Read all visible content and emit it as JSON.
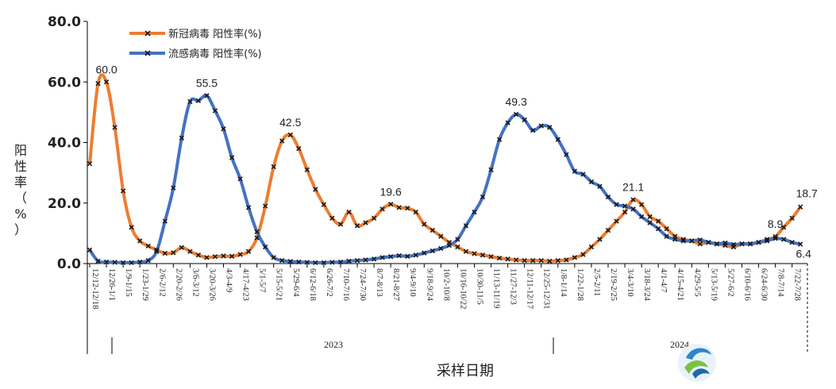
{
  "chart_data": {
    "type": "line",
    "title": "",
    "xlabel": "采样日期",
    "ylabel_chars": [
      "阳",
      "性",
      "率",
      "（",
      "%",
      "）"
    ],
    "ylim": [
      0,
      80
    ],
    "yticks": [
      "0.0",
      "20.0",
      "40.0",
      "60.0",
      "80.0"
    ],
    "grid": false,
    "legend_position": "top-left",
    "year_labels": [
      "2023",
      "2024"
    ],
    "tick_labels": [
      "12/12-12/18",
      "12/26-1/1",
      "1/9-1/15",
      "1/23-1/29",
      "2/6-2/12",
      "2/20-2/26",
      "3/6-3/12",
      "3/20-3/26",
      "4/3-4/9",
      "4/17-4/23",
      "5/1-5/7",
      "5/15-5/21",
      "5/29-6/4",
      "6/12-6/18",
      "6/26-7/2",
      "7/10-7/16",
      "7/24-7/30",
      "8/7-8/13",
      "8/21-8/27",
      "9/4-9/10",
      "9/18-9/24",
      "10/2-10/8",
      "10/16-10/22",
      "10/30-11/5",
      "11/13-11/19",
      "11/27-12/3",
      "12/11-12/17",
      "12/25-12/31",
      "1/8-1/14",
      "1/22-1/28",
      "2/5-2/11",
      "2/19-2/25",
      "3/4-3/10",
      "3/18-3/24",
      "4/1-4/7",
      "4/15-4/21",
      "4/29-5/5",
      "5/13-5/19",
      "5/27-6/2",
      "6/10-6/16",
      "6/24-6/30",
      "7/8-7/14",
      "7/22-7/28"
    ],
    "series": [
      {
        "name": "新冠病毒 阳性率(%)",
        "color": "#ED7D31",
        "values": [
          33.0,
          59.5,
          60.0,
          45.0,
          24.0,
          12.0,
          7.5,
          5.8,
          4.5,
          3.4,
          3.6,
          5.3,
          4.0,
          2.8,
          2.0,
          2.3,
          2.5,
          2.4,
          3.0,
          4.0,
          8.5,
          19.0,
          32.0,
          40.5,
          42.5,
          38.0,
          31.0,
          24.5,
          19.5,
          15.0,
          13.0,
          17.0,
          12.5,
          13.5,
          15.0,
          18.0,
          19.6,
          18.5,
          18.3,
          17.0,
          13.0,
          11.0,
          9.0,
          7.0,
          5.5,
          4.0,
          3.3,
          2.8,
          2.3,
          1.8,
          1.5,
          1.2,
          1.0,
          1.0,
          1.0,
          0.8,
          1.0,
          1.2,
          2.0,
          3.0,
          5.5,
          8.0,
          11.0,
          14.0,
          17.0,
          21.1,
          19.5,
          15.5,
          14.0,
          11.5,
          9.0,
          8.0,
          7.5,
          6.5,
          7.0,
          6.5,
          6.0,
          5.5,
          6.5,
          6.5,
          7.0,
          8.0,
          8.9,
          12.0,
          15.0,
          18.7
        ]
      },
      {
        "name": "流感病毒 阳性率(%)",
        "color": "#4472C4",
        "values": [
          4.5,
          0.8,
          0.5,
          0.4,
          0.3,
          0.3,
          0.5,
          1.0,
          4.0,
          14.0,
          25.0,
          41.5,
          53.5,
          53.8,
          55.5,
          50.5,
          44.5,
          35.0,
          28.0,
          18.5,
          10.5,
          5.5,
          2.0,
          1.0,
          0.7,
          0.5,
          0.4,
          0.3,
          0.3,
          0.4,
          0.5,
          0.8,
          1.0,
          1.2,
          1.5,
          2.0,
          2.3,
          2.6,
          2.4,
          2.8,
          3.5,
          4.2,
          5.0,
          6.0,
          8.0,
          12.5,
          17.0,
          22.0,
          31.0,
          41.0,
          46.5,
          49.3,
          47.5,
          44.0,
          45.5,
          45.0,
          41.0,
          36.0,
          30.5,
          29.5,
          27.0,
          25.5,
          22.0,
          19.5,
          19.0,
          18.0,
          15.5,
          13.5,
          11.5,
          9.0,
          8.0,
          7.5,
          7.5,
          7.8,
          7.0,
          6.5,
          6.8,
          6.3,
          6.5,
          6.5,
          7.0,
          7.5,
          8.3,
          8.0,
          7.0,
          6.4
        ]
      }
    ],
    "annotations": [
      {
        "series": 0,
        "index": 2,
        "text": "60.0"
      },
      {
        "series": 1,
        "index": 14,
        "text": "55.5"
      },
      {
        "series": 0,
        "index": 24,
        "text": "42.5"
      },
      {
        "series": 0,
        "index": 36,
        "text": "19.6"
      },
      {
        "series": 1,
        "index": 51,
        "text": "49.3"
      },
      {
        "series": 0,
        "index": 65,
        "text": "21.1"
      },
      {
        "series": 0,
        "index": 82,
        "text": "8.9"
      },
      {
        "series": 0,
        "index": 85,
        "text": "18.7"
      },
      {
        "series": 1,
        "index": 85,
        "text": "6.4"
      }
    ]
  }
}
